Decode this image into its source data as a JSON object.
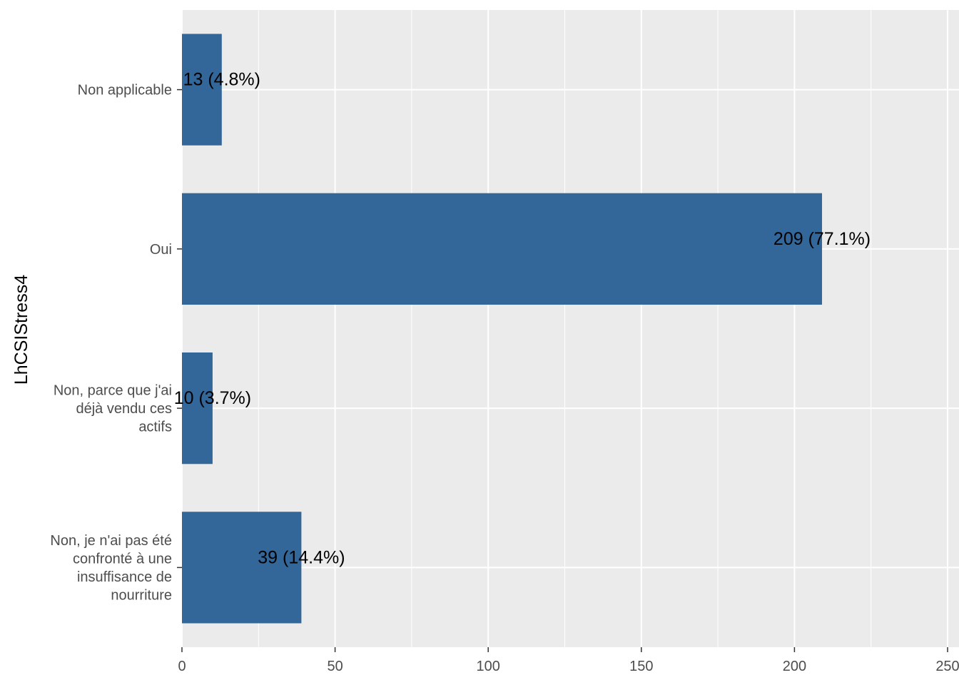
{
  "chart_data": {
    "type": "bar",
    "orientation": "horizontal",
    "categories": [
      "Non applicable",
      "Oui",
      "Non, parce que j'ai déjà vendu ces actifs",
      "Non, je n'ai pas été confronté à une insuffisance de nourriture"
    ],
    "category_label_lines": [
      [
        "Non applicable"
      ],
      [
        "Oui"
      ],
      [
        "Non, parce que j'ai",
        "déjà vendu ces",
        "actifs"
      ],
      [
        "Non, je n'ai pas été",
        "confronté à une",
        "insuffisance de",
        "nourriture"
      ]
    ],
    "values": [
      13,
      209,
      10,
      39
    ],
    "data_labels": [
      "13 (4.8%)",
      "209 (77.1%)",
      "10 (3.7%)",
      "39 (14.4%)"
    ],
    "title": "",
    "xlabel": "",
    "ylabel": "LhCSIStress4",
    "xlim": [
      0,
      250
    ],
    "x_ticks": [
      "0",
      "50",
      "100",
      "150",
      "200",
      "250"
    ],
    "grid": true,
    "colors": {
      "bar": "#336699",
      "panel": "#ebebeb",
      "grid": "#ffffff"
    }
  }
}
